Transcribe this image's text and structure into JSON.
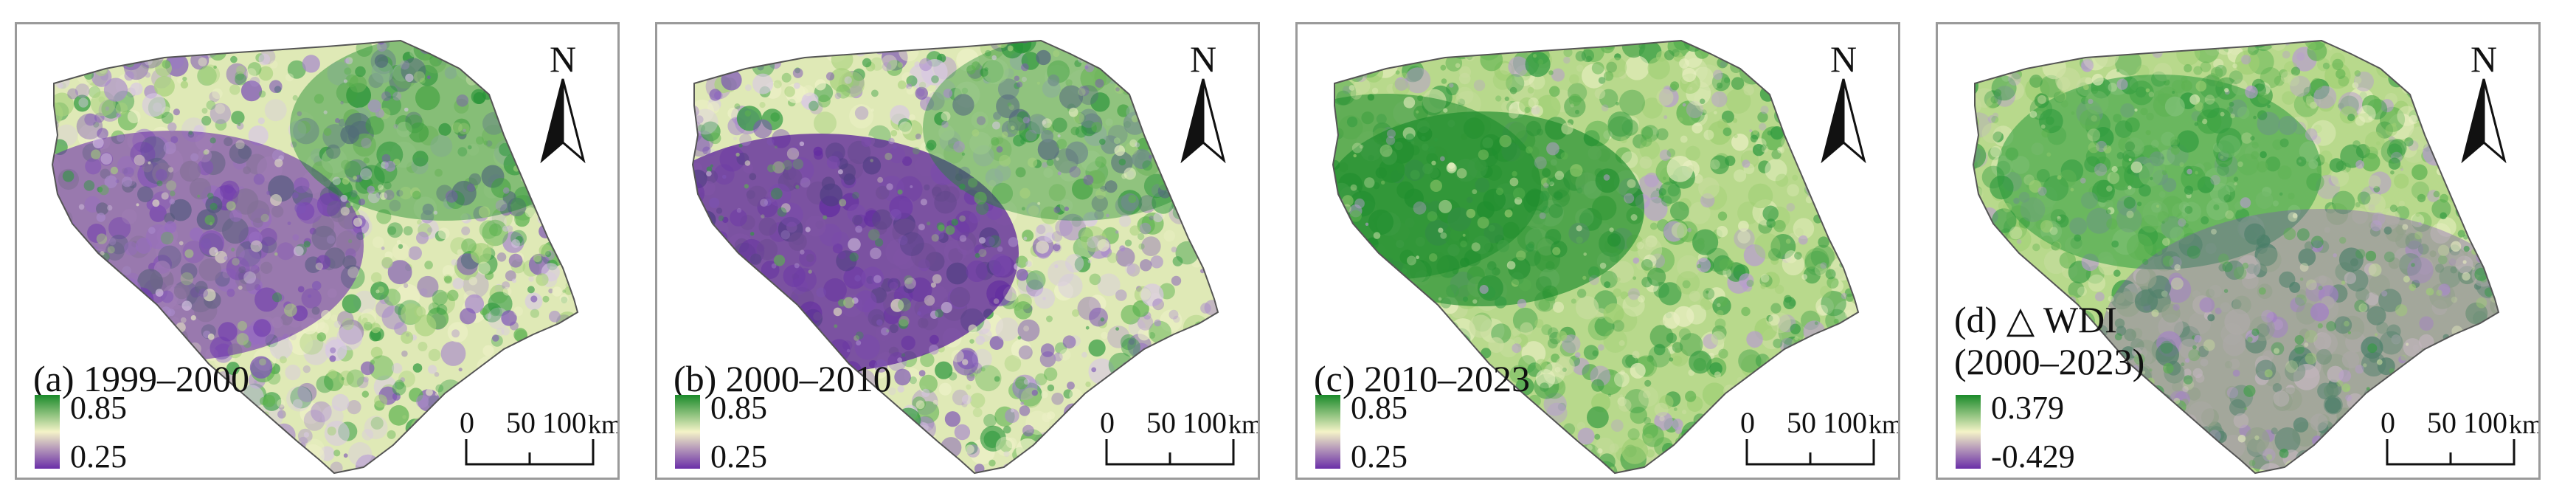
{
  "figure": {
    "panels": [
      {
        "id": "a",
        "label": "(a) 1999–2000",
        "label_line2": "",
        "legend_max": "0.85",
        "legend_min": "0.25",
        "legend_colors": [
          "#1a8a2a",
          "#f4f3c8",
          "#6a2ea8"
        ],
        "tone": "purple-core"
      },
      {
        "id": "b",
        "label": "(b) 2000–2010",
        "label_line2": "",
        "legend_max": "0.85",
        "legend_min": "0.25",
        "legend_colors": [
          "#1a8a2a",
          "#f4f3c8",
          "#6a2ea8"
        ],
        "tone": "purple-core-strong"
      },
      {
        "id": "c",
        "label": "(c) 2010–2023",
        "label_line2": "",
        "legend_max": "0.85",
        "legend_min": "0.25",
        "legend_colors": [
          "#1a8a2a",
          "#f4f3c8",
          "#6a2ea8"
        ],
        "tone": "green"
      },
      {
        "id": "d",
        "label": "(d) △ WDI",
        "label_line2": "(2000–2023)",
        "legend_max": "0.379",
        "legend_min": "-0.429",
        "legend_colors": [
          "#1a8a2a",
          "#f4f3c8",
          "#6a2ea8"
        ],
        "tone": "green-mixed"
      }
    ],
    "north_arrow": "N",
    "scale": {
      "ticks": [
        "0",
        "50",
        "100"
      ],
      "unit": "km"
    }
  }
}
